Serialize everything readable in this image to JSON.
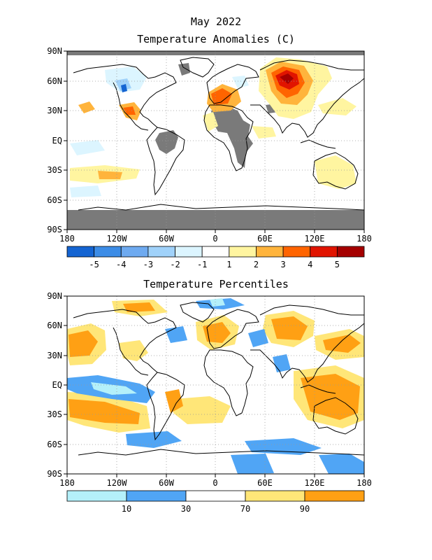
{
  "title": "May 2022",
  "maps": [
    {
      "subtitle": "Temperature Anomalies (C)",
      "lat_labels": [
        "90N",
        "60N",
        "30N",
        "EQ",
        "30S",
        "60S",
        "90S"
      ],
      "lon_labels": [
        "180",
        "120W",
        "60W",
        "0",
        "60E",
        "120E",
        "180"
      ],
      "colorbar": {
        "colors": [
          "#1464d2",
          "#3c8ce6",
          "#6eaaf0",
          "#a0d2fa",
          "#dcf5ff",
          "#ffffff",
          "#fff5a0",
          "#ffb43c",
          "#ff6400",
          "#e11400",
          "#a50000"
        ],
        "labels": [
          "-5",
          "-4",
          "-3",
          "-2",
          "-1",
          "1",
          "2",
          "3",
          "4",
          "5"
        ]
      }
    },
    {
      "subtitle": "Temperature Percentiles",
      "lat_labels": [
        "90N",
        "60N",
        "30N",
        "EQ",
        "30S",
        "60S",
        "90S"
      ],
      "lon_labels": [
        "180",
        "120W",
        "60W",
        "0",
        "60E",
        "120E",
        "180"
      ],
      "colorbar": {
        "colors": [
          "#b4f0fa",
          "#50a5f5",
          "#ffffff",
          "#ffe678",
          "#ffa014"
        ],
        "labels": [
          "10",
          "30",
          "70",
          "90"
        ]
      }
    }
  ]
}
